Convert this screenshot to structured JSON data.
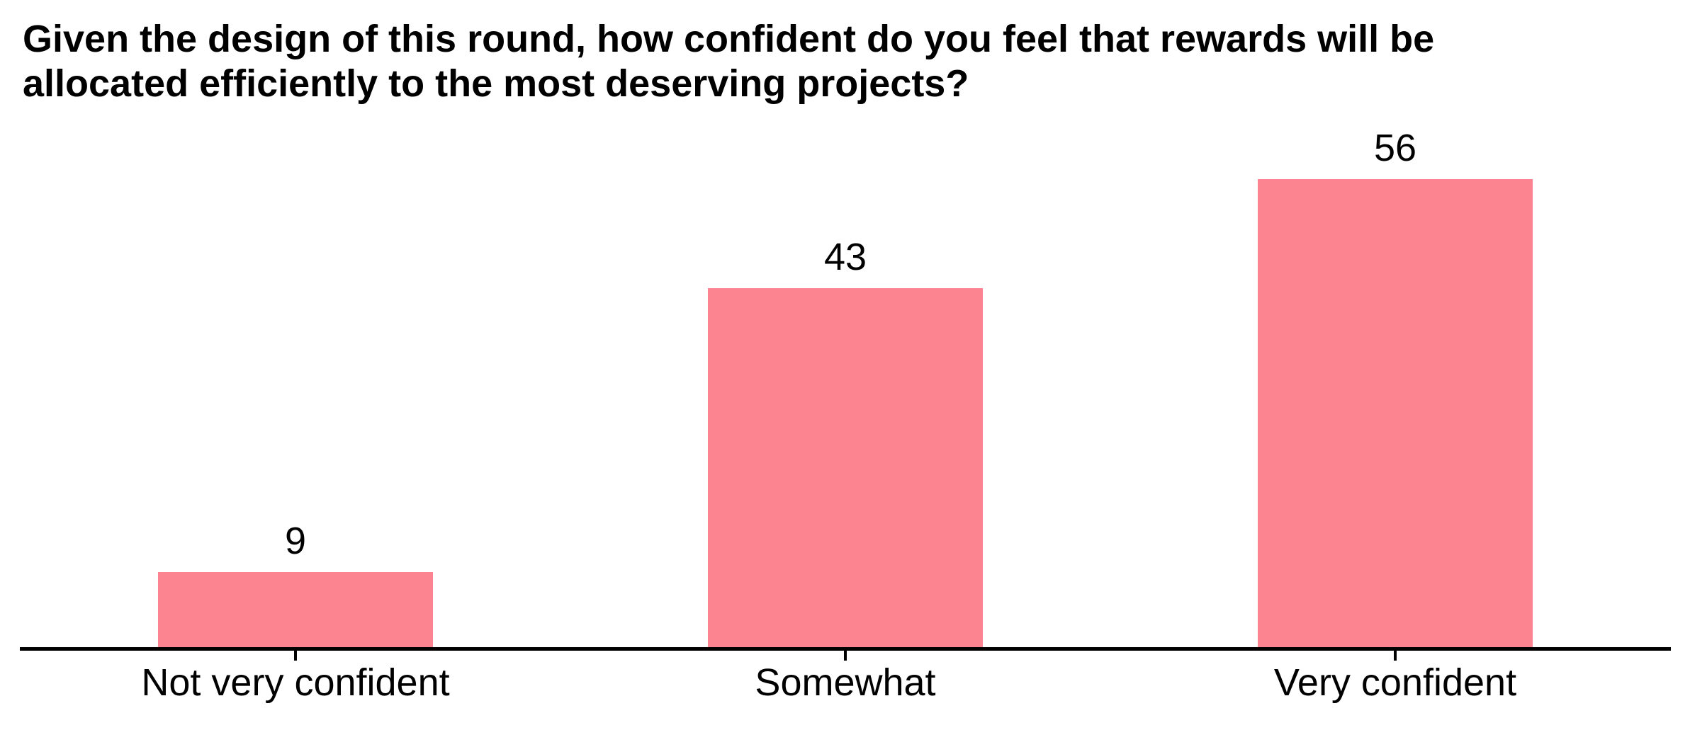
{
  "page": {
    "background": "#FFFFFF"
  },
  "header": {
    "title_line1": "Given the design of this round, how confident do you feel that rewards will be",
    "title_line2": "allocated efficiently to the most deserving projects?"
  },
  "chart_data": {
    "type": "bar",
    "title": "Given the design of this round, how confident do you feel that rewards will be allocated efficiently to the most deserving projects?",
    "categories": [
      "Not very confident",
      "Somewhat",
      "Very confident"
    ],
    "values": [
      9,
      43,
      56
    ],
    "xlabel": "",
    "ylabel": "",
    "ylim": [
      0,
      60
    ],
    "orientation": "vertical",
    "value_labels_shown": true,
    "grid": false,
    "legend": false,
    "bar_color": "#FC8390",
    "axis_color": "#000000",
    "text_color": "#000000",
    "background_color": "#FFFFFF"
  }
}
